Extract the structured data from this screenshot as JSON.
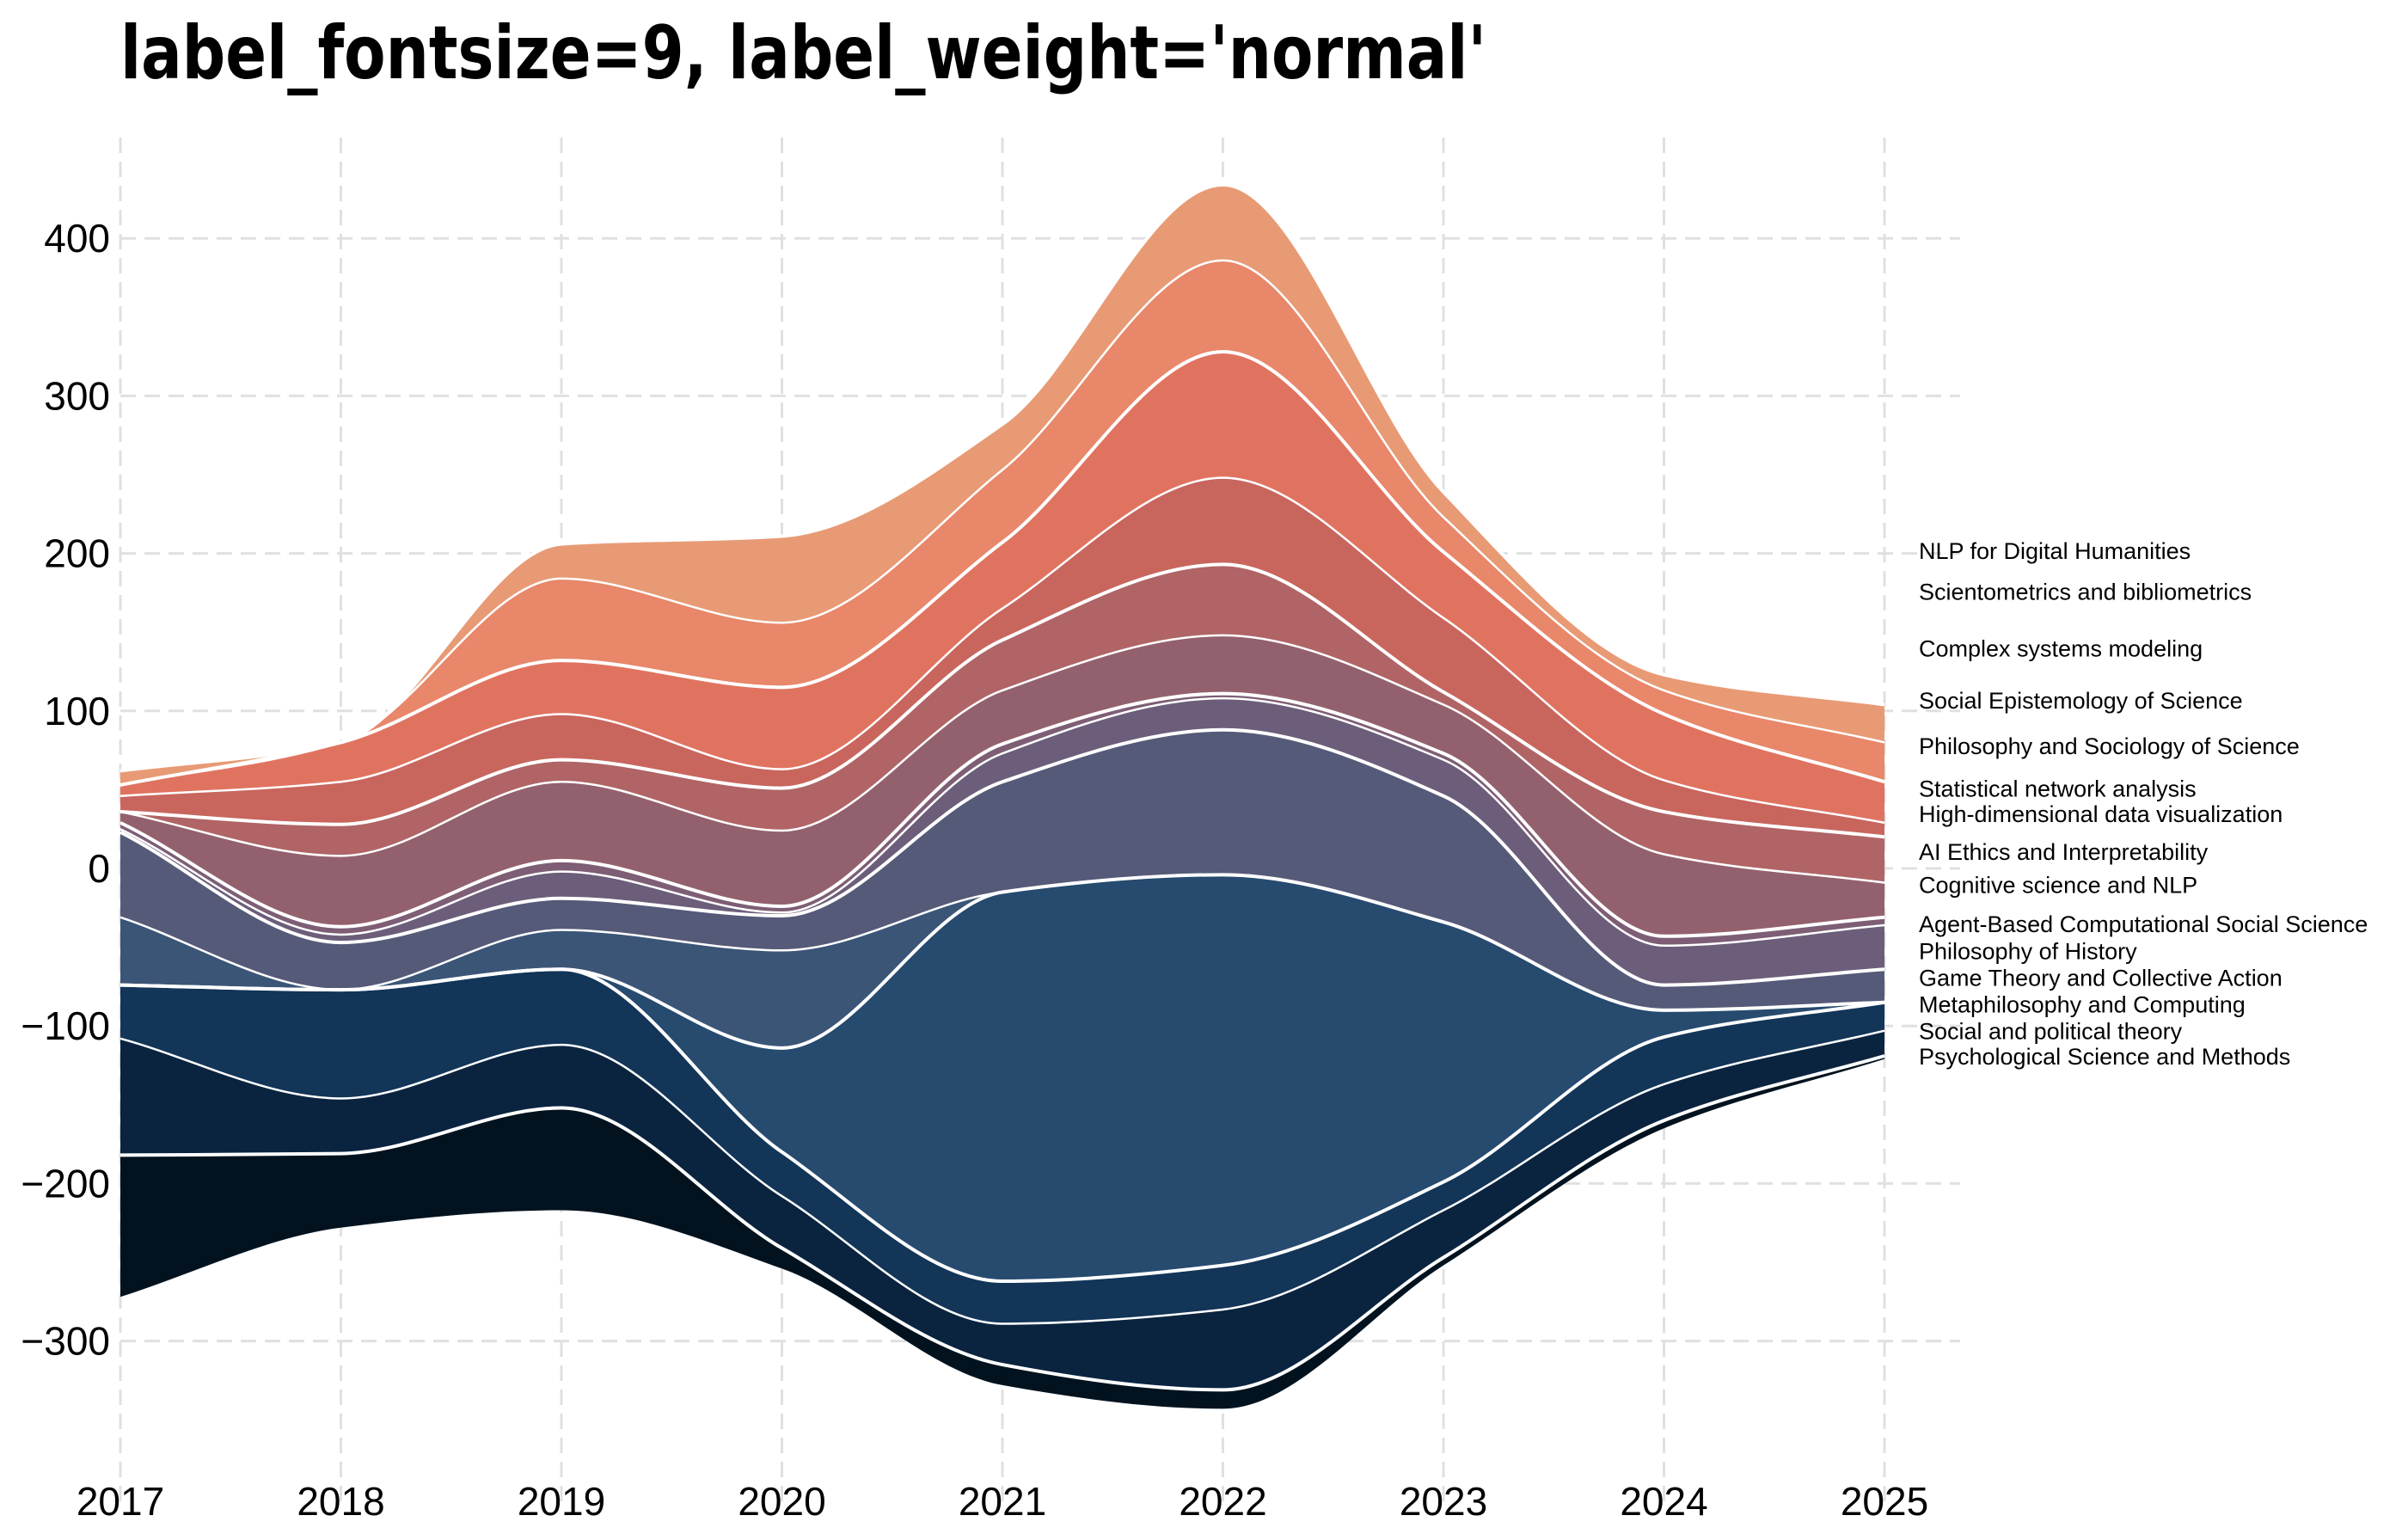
{
  "title": "label_fontsize=9, label_weight='normal'",
  "chart_data": {
    "type": "streamgraph",
    "title": "label_fontsize=9, label_weight='normal'",
    "xlabel": "",
    "ylabel": "",
    "x": [
      2017,
      2018,
      2019,
      2020,
      2021,
      2022,
      2023,
      2024,
      2025
    ],
    "x_ticks": [
      "2017",
      "2018",
      "2019",
      "2020",
      "2021",
      "2022",
      "2023",
      "2024",
      "2025"
    ],
    "y_ticks": [
      "400",
      "300",
      "200",
      "100",
      "0",
      "−100",
      "−200",
      "−300"
    ],
    "xlim": [
      2017,
      2025.3
    ],
    "ylim": [
      -375,
      460
    ],
    "grid": true,
    "baseline": [
      -272,
      -228,
      -217,
      -254,
      -328,
      -343,
      -252,
      -165,
      -121
    ],
    "series": [
      {
        "name": "Psychological Science and Methods",
        "values": [
          90,
          47,
          65,
          13,
          13,
          12,
          5,
          5,
          2
        ],
        "color": "#02131f"
      },
      {
        "name": "Social and political theory",
        "values": [
          0,
          0,
          0,
          0,
          0,
          0,
          0,
          0,
          0
        ],
        "color": "#041c30"
      },
      {
        "name": "Metaphilosophy and Computing",
        "values": [
          74,
          35,
          40,
          33,
          26,
          51,
          30,
          23,
          16
        ],
        "color": "#0a2440"
      },
      {
        "name": "Game Theory and Collective Action",
        "values": [
          34,
          69,
          48,
          28,
          27,
          28,
          18,
          30,
          18
        ],
        "color": "#123558"
      },
      {
        "name": "Philosophy of History",
        "values": [
          0,
          0,
          0,
          0,
          0,
          0,
          0,
          0,
          0
        ],
        "color": "#1e4468"
      },
      {
        "name": "Agent-Based Computational Social Science",
        "values": [
          0,
          0,
          0,
          66,
          247,
          248,
          165,
          17,
          0
        ],
        "color": "#274a6f"
      },
      {
        "name": "Cognitive science and NLP",
        "values": [
          43,
          0,
          25,
          62,
          0,
          0,
          0,
          0,
          0
        ],
        "color": "#3b5577"
      },
      {
        "name": "AI Ethics and Interpretability",
        "values": [
          54,
          30,
          20,
          22,
          70,
          92,
          80,
          16,
          21
        ],
        "color": "#565a79"
      },
      {
        "name": "High-dimensional data visualization",
        "values": [
          2,
          5,
          17,
          2,
          18,
          20,
          23,
          25,
          28
        ],
        "color": "#6c5e7a"
      },
      {
        "name": "Statistical network analysis",
        "values": [
          4,
          5,
          7,
          4,
          6,
          3,
          4,
          6,
          5
        ],
        "color": "#7d5e75"
      },
      {
        "name": "Philosophy and Sociology of Science",
        "values": [
          7,
          45,
          50,
          48,
          34,
          37,
          31,
          52,
          22
        ],
        "color": "#93616e"
      },
      {
        "name": "Social Epistemology of Science",
        "values": [
          0,
          20,
          14,
          27,
          32,
          45,
          8,
          27,
          29
        ],
        "color": "#b06466"
      },
      {
        "name": "Complex systems modeling",
        "values": [
          10,
          27,
          29,
          12,
          20,
          55,
          47,
          20,
          9
        ],
        "color": "#c8665e"
      },
      {
        "name": "Scientometrics and bibliometrics",
        "values": [
          7,
          25,
          34,
          52,
          42,
          80,
          42,
          42,
          26
        ],
        "color": "#e07360"
      },
      {
        "name": "NLP for Digital Humanities",
        "values": [
          0,
          0,
          52,
          41,
          46,
          58,
          22,
          15,
          25
        ],
        "color": "#e8876a"
      },
      {
        "name": "",
        "values": [
          9,
          0,
          22,
          55,
          29,
          48,
          16,
          10,
          24
        ],
        "color": "#e89a75"
      }
    ],
    "legend": [
      "NLP for Digital Humanities",
      "Scientometrics and bibliometrics",
      "Complex systems modeling",
      "Social Epistemology of Science",
      "Philosophy and Sociology of Science",
      "Statistical network analysis",
      "High-dimensional data visualization",
      "AI Ethics and Interpretability",
      "Cognitive science and NLP",
      "Agent-Based Computational Social Science",
      "Philosophy of History",
      "Game Theory and Collective Action",
      "Metaphilosophy and Computing",
      "Social and political theory",
      "Psychological Science and Methods"
    ],
    "legend_values": [
      202,
      176,
      140,
      107,
      78,
      51,
      35,
      11,
      -10,
      -35,
      -52,
      -69,
      -86,
      -103,
      -119
    ]
  }
}
